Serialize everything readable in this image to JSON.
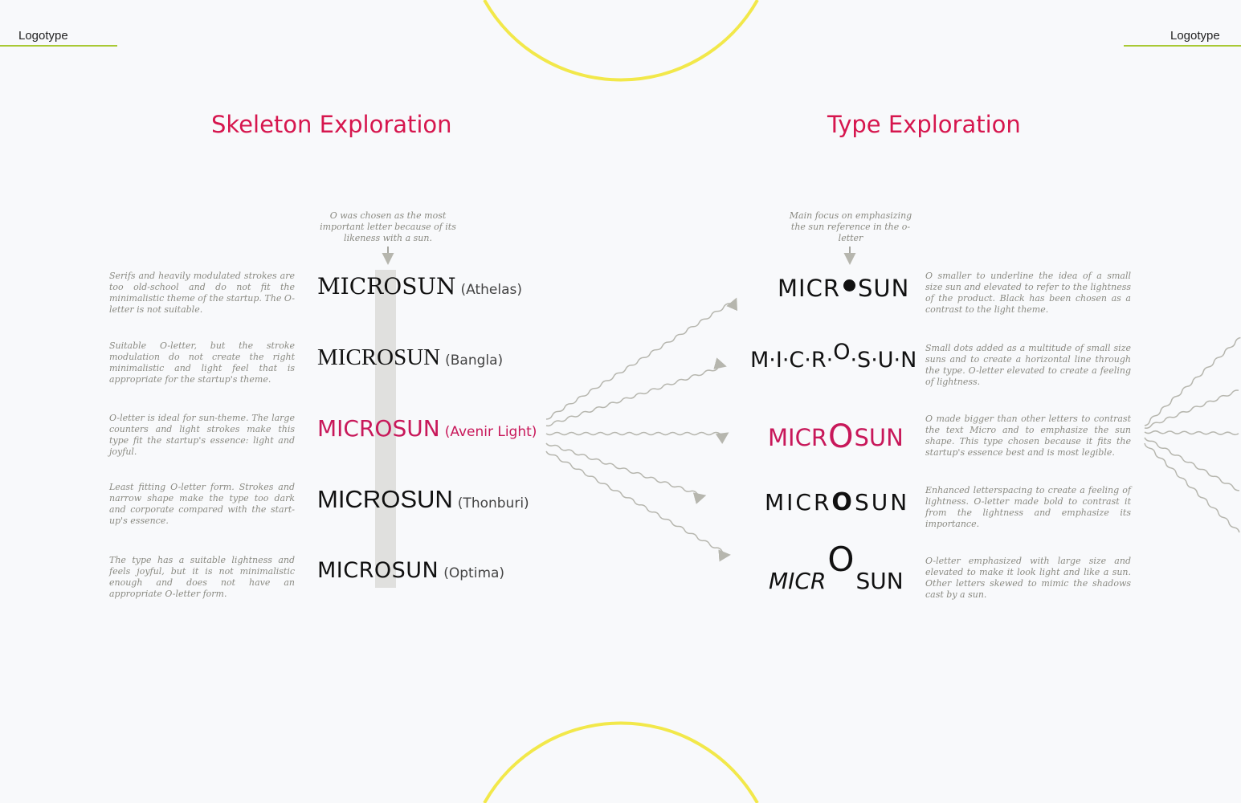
{
  "header": {
    "left_label": "Logotype",
    "right_label": "Logotype"
  },
  "skeleton": {
    "title": "Skeleton Exploration",
    "annotation": "O was chosen as the most important letter because of its likeness with a sun.",
    "rows": [
      {
        "pre": "MICR",
        "o": "O",
        "post": "SUN",
        "font": "(Athelas)",
        "note": "Serifs and heavily modulated strokes are too old-school and do not fit the minimalistic theme of the startup. The O-letter is not suitable."
      },
      {
        "pre": "MICR",
        "o": "O",
        "post": "SUN",
        "font": "(Bangla)",
        "note": "Suitable O-letter, but the stroke modulation do not create the right minimalistic and light feel that is appropriate for the startup's theme."
      },
      {
        "pre": "MICR",
        "o": "O",
        "post": "SUN",
        "font": "(Avenir Light)",
        "note": "O-letter is ideal for sun-theme. The large counters and light strokes make this type fit the startup's essence: light and joyful."
      },
      {
        "pre": "MICR",
        "o": "O",
        "post": "SUN",
        "font": "(Thonburi)",
        "note": "Least fitting O-letter form. Strokes and narrow shape make the type too dark and corporate compared with the start-up's essence."
      },
      {
        "pre": "MICR",
        "o": "O",
        "post": "SUN",
        "font": "(Optima)",
        "note": "The type has a suitable lightness and feels joyful, but it is not minimalistic enough and does not have an appropriate O-letter form."
      }
    ]
  },
  "type": {
    "title": "Type Exploration",
    "annotation": "Main focus on emphasizing the sun reference in the o-letter",
    "rows": [
      {
        "pre": "MICR",
        "o": "",
        "post": "SUN",
        "note": "O smaller to underline the idea of a small size sun and elevated to refer to the lightness of the product. Black has been chosen as a contrast to the light theme."
      },
      {
        "pre": "M·I·C·R·",
        "o": "O",
        "post": "·S·U·N",
        "note": "Small dots added as a multitude of small size suns and to create a horizontal line through the type. O-letter elevated to create a feeling of lightness."
      },
      {
        "pre": "MICR",
        "o": "O",
        "post": "SUN",
        "note": "O made bigger than other letters to contrast the text Micro and to emphasize the sun shape. This type chosen because it fits the startup's essence best and is most legible."
      },
      {
        "pre": "MICR",
        "o": "O",
        "post": "SUN",
        "note": "Enhanced letterspacing to create a feeling of lightness. O-letter made bold to contrast it from the lightness and emphasize its importance."
      },
      {
        "pre": "MICR",
        "o": "O",
        "post": "SUN",
        "note": "O-letter emphasized with large size and elevated to make it look light and like a sun. Other letters skewed to mimic the shadows cast by a sun."
      }
    ]
  },
  "colors": {
    "accent": "#d6164e",
    "rule": "#a9c935",
    "sun_arc": "#f2e84a",
    "highlight_bar": "#e0e0de",
    "arrow": "#b6b6ae"
  }
}
